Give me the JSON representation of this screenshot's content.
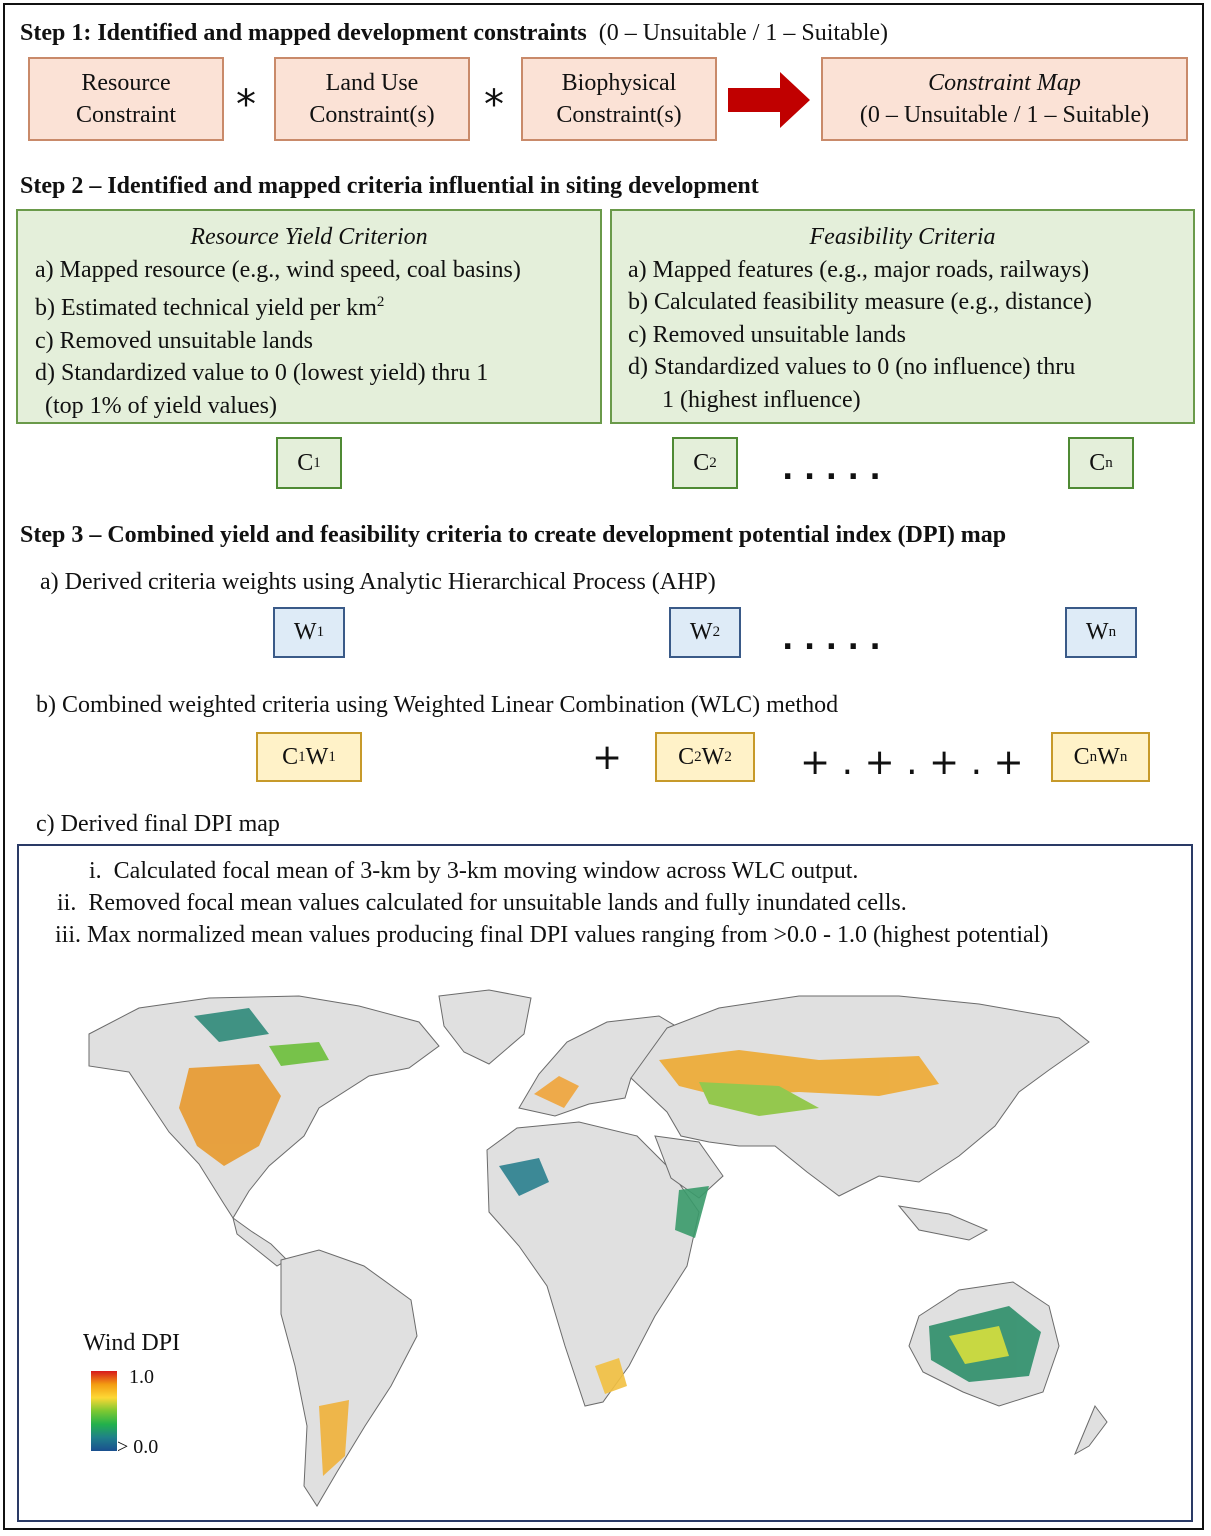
{
  "step1": {
    "title": "Step 1:  Identified and mapped development constraints",
    "note": "(0 – Unsuitable / 1 – Suitable)",
    "boxes": [
      {
        "line1": "Resource",
        "line2": "Constraint"
      },
      {
        "line1": "Land Use",
        "line2": "Constraint(s)"
      },
      {
        "line1": "Biophysical",
        "line2": "Constraint(s)"
      }
    ],
    "operator": "*",
    "result": {
      "line1": "Constraint Map",
      "line2": "(0 – Unsuitable / 1 – Suitable)"
    },
    "arrow_color": "#c00000"
  },
  "step2": {
    "title": "Step 2 – Identified and mapped criteria influential in siting development",
    "left": {
      "heading": "Resource Yield Criterion",
      "items": [
        {
          "marker": "a)",
          "text": "Mapped resource (e.g., wind speed, coal basins)"
        },
        {
          "marker": "b)",
          "text": "Estimated technical yield per km",
          "sup": "2"
        },
        {
          "marker": "c)",
          "text": "Removed unsuitable lands"
        },
        {
          "marker": "d)",
          "text": "Standardized value to 0 (lowest yield) thru 1"
        }
      ],
      "continuation": "(top 1% of yield values)"
    },
    "right": {
      "heading": "Feasibility Criteria",
      "items": [
        {
          "marker": "a)",
          "text": "Mapped features (e.g., major roads, railways)"
        },
        {
          "marker": "b)",
          "text": "Calculated feasibility measure (e.g., distance)"
        },
        {
          "marker": "c)",
          "text": "Removed unsuitable lands"
        },
        {
          "marker": "d)",
          "text": "Standardized values to 0 (no influence) thru"
        }
      ],
      "continuation": "1 (highest influence)"
    },
    "criteria": [
      {
        "base": "C",
        "sub": "1"
      },
      {
        "base": "C",
        "sub": "2"
      },
      {
        "base": "C",
        "sub": "n"
      }
    ],
    "ellipsis": ".  .  .  .  ."
  },
  "step3": {
    "title": "Step 3 – Combined yield and feasibility criteria to create development potential index (DPI) map",
    "a_text": "a) Derived criteria weights using Analytic Hierarchical Process (AHP)",
    "weights": [
      {
        "base": "W",
        "sub": "1"
      },
      {
        "base": "W",
        "sub": "2"
      },
      {
        "base": "W",
        "sub": "n"
      }
    ],
    "ellipsis": ".  .  .  .  .",
    "b_text": "b) Combined weighted criteria using Weighted Linear Combination (WLC) method",
    "weighted": [
      {
        "c": "C",
        "cs": "1",
        "w": "W",
        "ws": "1"
      },
      {
        "c": "C",
        "cs": "2",
        "w": "W",
        "ws": "2"
      },
      {
        "c": "C",
        "cs": "n",
        "w": "W",
        "ws": "n"
      }
    ],
    "plus": "+",
    "plus_series": "+ . + . + . +",
    "c_text": "c) Derived final DPI map",
    "map_items": [
      {
        "num": "i.",
        "text": "Calculated focal mean of 3-km by 3-km moving window across WLC output."
      },
      {
        "num": "ii.",
        "text": "Removed focal mean values calculated for unsuitable lands and fully inundated cells."
      },
      {
        "num": "iii.",
        "text": "Max normalized mean values producing final DPI values ranging from >0.0 - 1.0 (highest potential)"
      }
    ],
    "legend": {
      "title": "Wind DPI",
      "max": "1.0",
      "min": "> 0.0",
      "colors": [
        "#d7191c",
        "#f39c12",
        "#fdd835",
        "#7cc832",
        "#22b14c",
        "#1f7f8a",
        "#1a4f8f"
      ]
    }
  }
}
